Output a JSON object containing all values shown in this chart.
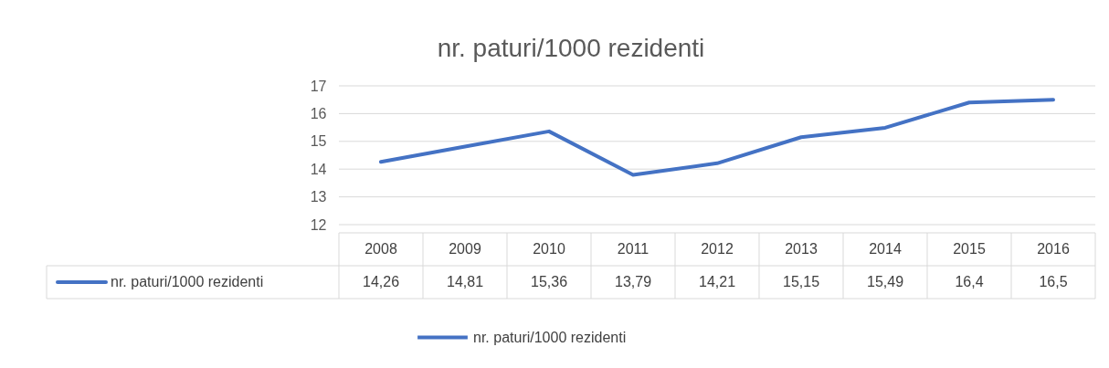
{
  "chart_data": {
    "type": "line",
    "title": "nr. paturi/1000 rezidenti",
    "categories": [
      "2008",
      "2009",
      "2010",
      "2011",
      "2012",
      "2013",
      "2014",
      "2015",
      "2016"
    ],
    "series": [
      {
        "name": "nr. paturi/1000 rezidenti",
        "color": "#4472c4",
        "values": [
          14.26,
          14.81,
          15.36,
          13.79,
          14.21,
          15.15,
          15.49,
          16.4,
          16.5
        ],
        "value_labels": [
          "14,26",
          "14,81",
          "15,36",
          "13,79",
          "14,21",
          "15,15",
          "15,49",
          "16,4",
          "16,5"
        ]
      }
    ],
    "ylim": [
      12,
      17
    ],
    "yticks": [
      12,
      13,
      14,
      15,
      16,
      17
    ],
    "grid": "y",
    "legend": "bottom",
    "marker": "none",
    "line_style": "solid"
  }
}
